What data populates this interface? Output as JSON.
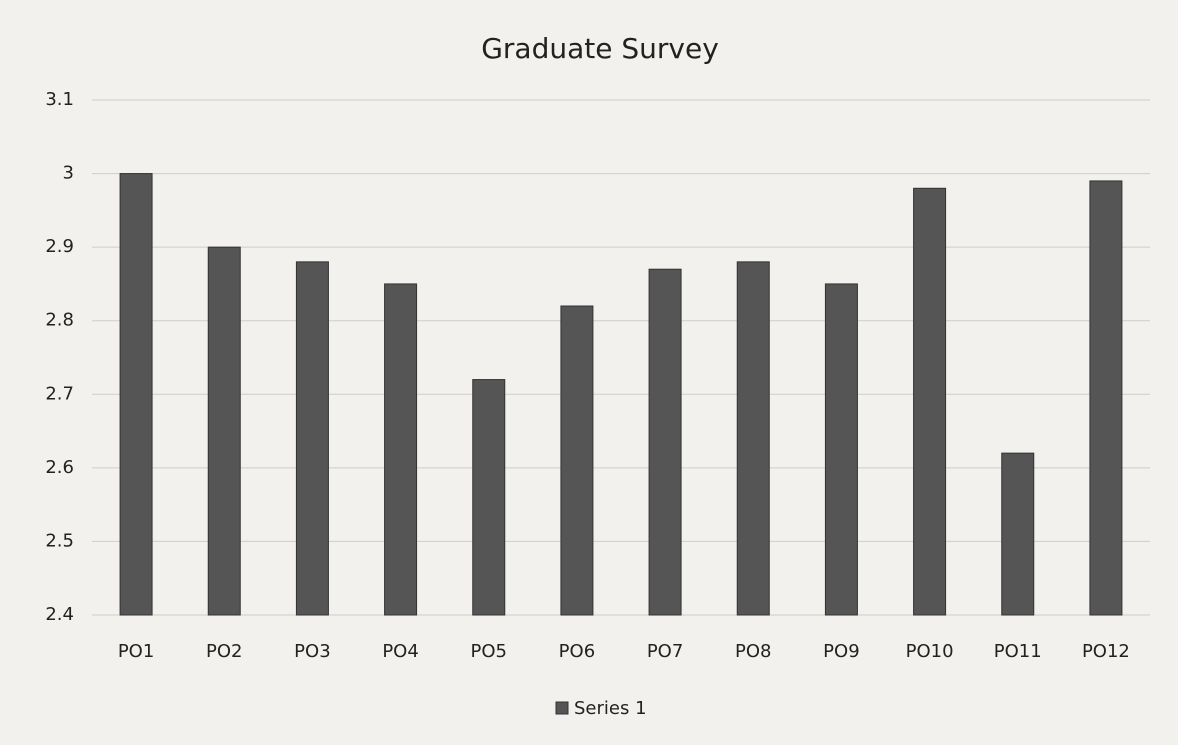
{
  "chart_data": {
    "type": "bar",
    "title": "Graduate Survey",
    "categories": [
      "PO1",
      "PO2",
      "PO3",
      "PO4",
      "PO5",
      "PO6",
      "PO7",
      "PO8",
      "PO9",
      "PO10",
      "PO11",
      "PO12"
    ],
    "series": [
      {
        "name": "Series 1",
        "color": "#555555",
        "values": [
          3.0,
          2.9,
          2.88,
          2.85,
          2.72,
          2.82,
          2.87,
          2.88,
          2.85,
          2.98,
          2.62,
          2.99
        ]
      }
    ],
    "ylim": [
      2.4,
      3.1
    ],
    "yticks": [
      2.4,
      2.5,
      2.6,
      2.7,
      2.8,
      2.9,
      3,
      3.1
    ],
    "grid": true,
    "legend": "bottom"
  }
}
